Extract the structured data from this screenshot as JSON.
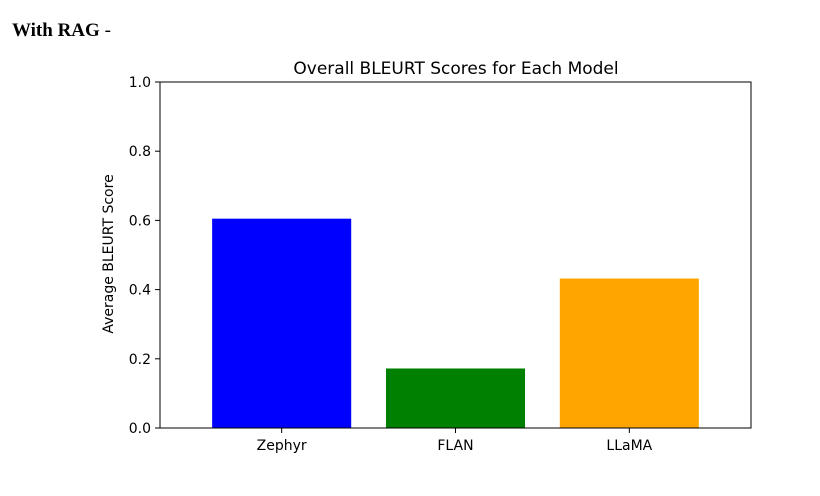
{
  "page": {
    "heading": "With RAG",
    "heading_suffix": "-"
  },
  "chart_data": {
    "type": "bar",
    "title": "Overall BLEURT Scores for Each Model",
    "xlabel": "",
    "ylabel": "Average BLEURT Score",
    "categories": [
      "Zephyr",
      "FLAN",
      "LLaMA"
    ],
    "values": [
      0.605,
      0.172,
      0.432
    ],
    "colors": [
      "#0000ff",
      "#008000",
      "#ffa500"
    ],
    "ylim": [
      0,
      1.0
    ],
    "yticks": [
      "0.0",
      "0.2",
      "0.4",
      "0.6",
      "0.8",
      "1.0"
    ],
    "grid": false
  }
}
